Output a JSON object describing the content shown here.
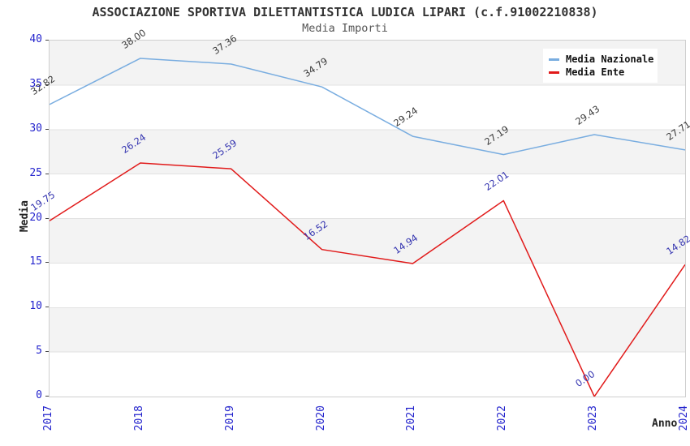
{
  "header": {
    "title": "ASSOCIAZIONE SPORTIVA DILETTANTISTICA LUDICA LIPARI (c.f.91002210838)",
    "subtitle": "Media Importi"
  },
  "chart_data": {
    "type": "line",
    "categories": [
      "2017",
      "2018",
      "2019",
      "2020",
      "2021",
      "2022",
      "2023",
      "2024"
    ],
    "series": [
      {
        "name": "Media Nazionale",
        "color": "#79ade0",
        "label_color": "#3c3c3c",
        "values": [
          32.82,
          38.0,
          37.36,
          34.79,
          29.24,
          27.19,
          29.43,
          27.71
        ]
      },
      {
        "name": "Media Ente",
        "color": "#e11a1a",
        "label_color": "#3434b0",
        "values": [
          19.75,
          26.24,
          25.59,
          16.52,
          14.94,
          22.01,
          0.0,
          14.82
        ]
      }
    ],
    "xlabel": "Anno",
    "ylabel": "Media",
    "ylim": [
      0,
      40
    ],
    "ytick_step": 5,
    "grid": "horizontal-bands",
    "legend_position": "top-right",
    "band_color": "#f3f3f3",
    "gridline_color": "#e2e2e2",
    "tick_label_color": "#2424cd",
    "tick_mark_color": "#444444",
    "value_label_decimals": 2
  }
}
